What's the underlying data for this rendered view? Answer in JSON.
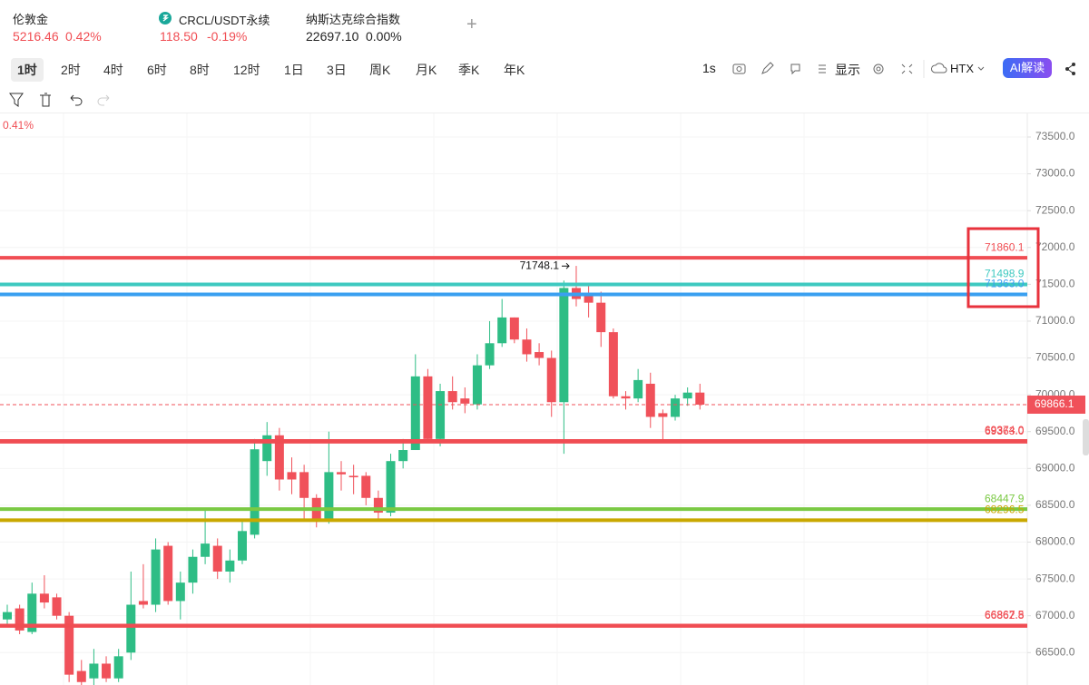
{
  "header": {
    "tickers": [
      {
        "name": "伦敦金",
        "price": "5216.46",
        "change": "0.42%"
      },
      {
        "name": "CRCL/USDT永续",
        "price": "118.50",
        "change": "-0.19%"
      },
      {
        "name": "纳斯达克综合指数",
        "price": "22697.10",
        "change": "0.00%"
      }
    ]
  },
  "timeframes": [
    "1时",
    "2时",
    "4时",
    "6时",
    "8时",
    "12时",
    "1日",
    "3日",
    "周K",
    "月K",
    "季K",
    "年K"
  ],
  "toolbar": {
    "interval": "1s",
    "display": "显示",
    "exchange": "HTX",
    "ai": "AI解读"
  },
  "chart": {
    "type": "candlestick",
    "change_label": "0.41%",
    "grid": true,
    "up_color": "#2ebd85",
    "down_color": "#f0515a",
    "ylim": [
      66060,
      73820
    ],
    "yticks": [
      {
        "value": 66500,
        "label": "66500.0"
      },
      {
        "value": 67000,
        "label": "67000.0"
      },
      {
        "value": 67500,
        "label": "67500.0"
      },
      {
        "value": 68000,
        "label": "68000.0"
      },
      {
        "value": 68500,
        "label": "68500.0"
      },
      {
        "value": 69000,
        "label": "69000.0"
      },
      {
        "value": 69500,
        "label": "69500.0"
      },
      {
        "value": 70000,
        "label": "70000.0"
      },
      {
        "value": 70500,
        "label": "70500.0"
      },
      {
        "value": 71000,
        "label": "71000.0"
      },
      {
        "value": 71500,
        "label": "71500.0"
      },
      {
        "value": 72000,
        "label": "72000.0"
      },
      {
        "value": 72500,
        "label": "72500.0"
      },
      {
        "value": 73000,
        "label": "73000.0"
      },
      {
        "value": 73500,
        "label": "73500.0"
      }
    ],
    "candles": {
      "open": [
        66950,
        67100,
        66780,
        67300,
        67250,
        67000,
        66250,
        66150,
        66350,
        66150,
        66500,
        67200,
        67150,
        67950,
        67200,
        67450,
        67800,
        67950,
        67600,
        67750,
        68100,
        69100,
        69450,
        68950,
        68950,
        68600,
        68320,
        68950,
        68900,
        68900,
        68600,
        68400,
        69100,
        69250,
        70250,
        69400,
        70050,
        69950,
        69870,
        70400,
        70700,
        71050,
        70750,
        70580,
        70500,
        69900,
        71450,
        71350,
        71250,
        70850,
        69980,
        69950,
        70150,
        69750,
        69700,
        69950,
        70030
      ],
      "high": [
        67150,
        67150,
        67450,
        67550,
        67300,
        67050,
        66400,
        66550,
        66450,
        66550,
        67600,
        67700,
        68050,
        68000,
        67600,
        67900,
        68450,
        68050,
        67900,
        68300,
        69400,
        69630,
        69550,
        69150,
        69050,
        68650,
        69500,
        69100,
        69050,
        68950,
        68700,
        69200,
        69400,
        70550,
        70350,
        70150,
        70250,
        70100,
        70550,
        71000,
        71300,
        71050,
        70900,
        70700,
        70600,
        71550,
        71750,
        71500,
        71400,
        70900,
        70050,
        70350,
        70300,
        69800,
        70000,
        70100,
        70150
      ],
      "low": [
        66850,
        66750,
        66750,
        67100,
        66950,
        66100,
        66000,
        66050,
        66100,
        66100,
        66400,
        67100,
        67050,
        67150,
        66950,
        67300,
        67700,
        67500,
        67450,
        67700,
        68050,
        68900,
        68700,
        68650,
        68300,
        68200,
        68250,
        68700,
        68650,
        68500,
        68300,
        68350,
        69000,
        69250,
        69350,
        69300,
        69800,
        69750,
        69800,
        70350,
        70650,
        70700,
        70450,
        70400,
        69700,
        69200,
        71200,
        71050,
        70650,
        69950,
        69800,
        69900,
        69550,
        69350,
        69650,
        69850,
        69800
      ],
      "close": [
        67050,
        66800,
        67300,
        67180,
        67000,
        66200,
        66100,
        66350,
        66150,
        66450,
        67150,
        67150,
        67900,
        67200,
        67450,
        67800,
        67980,
        67600,
        67750,
        68150,
        69260,
        69450,
        68850,
        68850,
        68600,
        68320,
        68950,
        68920,
        68880,
        68600,
        68400,
        69100,
        69250,
        70250,
        69400,
        70050,
        69900,
        69880,
        70400,
        70700,
        71050,
        70750,
        70550,
        70500,
        69900,
        71450,
        71300,
        71250,
        70850,
        69980,
        69950,
        70200,
        69700,
        69700,
        69950,
        70030,
        69866.1
      ]
    },
    "high_marker": 71748.1,
    "last_price": 69866.1,
    "price_lines": [
      {
        "value": 71860.1,
        "color": "#f04d53"
      },
      {
        "value": 71498.9,
        "color": "#3ec9c0"
      },
      {
        "value": {
          "value": 71363,
          "label": "71363.0"
        },
        "color": "#3aa0f0"
      },
      {
        "value": {
          "value": 69374,
          "label": "69374.0"
        },
        "color": "#f04d53"
      },
      {
        "value": {
          "value": 69363,
          "label": "69363.0"
        },
        "color": "#f04d53"
      },
      {
        "value": 68447.9,
        "color": "#7ac943"
      },
      {
        "value": 68296.5,
        "color": "#c9a800"
      },
      {
        "value": 66867.5,
        "color": "#f04d53"
      },
      {
        "value": 66862.8,
        "color": "#f04d53"
      }
    ]
  }
}
